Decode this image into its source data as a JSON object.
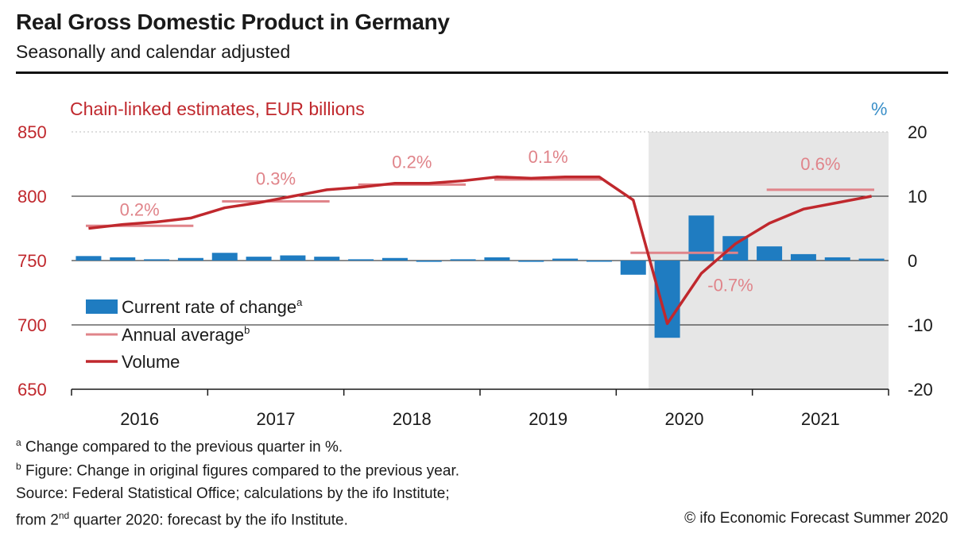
{
  "title": "Real Gross Domestic Product in Germany",
  "subtitle": "Seasonally and calendar adjusted",
  "colors": {
    "volume": "#c0282d",
    "annual": "#e0848a",
    "bars": "#1f7cc1",
    "shade": "#e6e6e6",
    "left_axis": "#c0282d",
    "pct_label": "#3a8fc8"
  },
  "chart_data": {
    "type": "bar",
    "left_axis_label": "Chain-linked estimates, EUR billions",
    "right_axis_label": "%",
    "left_ylim": [
      650,
      850
    ],
    "right_ylim": [
      -20,
      20
    ],
    "left_ticks": [
      "650",
      "700",
      "750",
      "800",
      "850"
    ],
    "right_ticks": [
      "-20",
      "-10",
      "0",
      "10",
      "20"
    ],
    "years": [
      "2016",
      "2017",
      "2018",
      "2019",
      "2020",
      "2021"
    ],
    "quarters": [
      "2016Q1",
      "2016Q2",
      "2016Q3",
      "2016Q4",
      "2017Q1",
      "2017Q2",
      "2017Q3",
      "2017Q4",
      "2018Q1",
      "2018Q2",
      "2018Q3",
      "2018Q4",
      "2019Q1",
      "2019Q2",
      "2019Q3",
      "2019Q4",
      "2020Q1",
      "2020Q2",
      "2020Q3",
      "2020Q4",
      "2021Q1",
      "2021Q2",
      "2021Q3",
      "2021Q4"
    ],
    "forecast_from": "2020Q2",
    "series": [
      {
        "name": "Current rate of change",
        "kind": "bar",
        "axis": "right",
        "values": [
          0.7,
          0.5,
          0.2,
          0.4,
          1.2,
          0.6,
          0.8,
          0.6,
          0.2,
          0.4,
          -0.2,
          0.2,
          0.5,
          -0.2,
          0.3,
          -0.1,
          -2.2,
          -12.0,
          7.0,
          3.8,
          2.2,
          1.0,
          0.5,
          0.3
        ]
      },
      {
        "name": "Volume",
        "kind": "line",
        "axis": "left",
        "values": [
          775,
          778,
          780,
          783,
          791,
          795,
          800,
          805,
          807,
          810,
          810,
          812,
          815,
          814,
          815,
          815,
          797,
          701,
          740,
          763,
          779,
          790,
          795,
          800
        ]
      },
      {
        "name": "Annual average",
        "kind": "segment",
        "axis": "left",
        "segments": [
          {
            "year": "2016",
            "value": 777,
            "label": "0.2%"
          },
          {
            "year": "2017",
            "value": 796,
            "label": "0.3%"
          },
          {
            "year": "2018",
            "value": 809,
            "label": "0.2%"
          },
          {
            "year": "2019",
            "value": 813,
            "label": "0.1%"
          },
          {
            "year": "2020",
            "value": 756,
            "label": "-0.7%"
          },
          {
            "year": "2021",
            "value": 805,
            "label": "0.6%"
          }
        ]
      }
    ],
    "legend": [
      {
        "label": "Current rate of change",
        "sup": "a",
        "kind": "bar"
      },
      {
        "label": "Annual average",
        "sup": "b",
        "kind": "segment"
      },
      {
        "label": "Volume",
        "sup": "",
        "kind": "line"
      }
    ],
    "legend_position": "bottom-left",
    "grid": true
  },
  "footnotes": {
    "a_mark": "a",
    "a": "Change compared to the previous quarter in %.",
    "b_mark": "b",
    "b": "Figure: Change in original figures compared to the previous year.",
    "source": "Source: Federal Statistical Office; calculations by the ifo Institute;",
    "forecast_pre": "from 2",
    "forecast_sup": "nd",
    "forecast_post": " quarter 2020: forecast by the ifo Institute."
  },
  "copyright": "© ifo Economic Forecast Summer 2020"
}
